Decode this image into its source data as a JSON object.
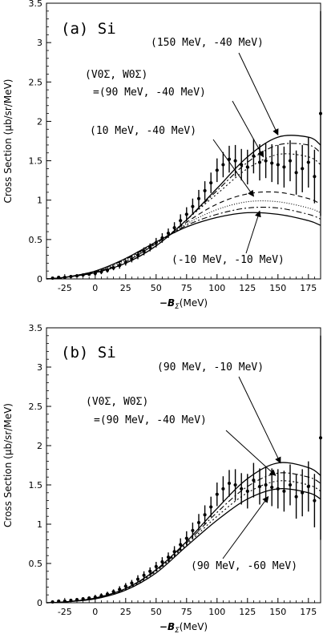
{
  "chart_data": [
    {
      "panel": "(a) Si",
      "type": "line",
      "xlabel_main": "−B",
      "xlabel_sub": "Σ",
      "xlabel_unit": "(MeV)",
      "ylabel": "Cross Section (μb/sr/MeV)",
      "xlim": [
        -40,
        185
      ],
      "ylim": [
        0,
        3.5
      ],
      "xticks": [
        -25,
        0,
        25,
        50,
        75,
        100,
        125,
        150,
        175
      ],
      "yticks": [
        0,
        0.5,
        1,
        1.5,
        2,
        2.5,
        3,
        3.5
      ],
      "annotations": [
        {
          "id": "top",
          "text": "(150 MeV, -40 MeV)",
          "target": [
            150,
            1.83
          ]
        },
        {
          "id": "param1",
          "text": "(V0Σ, W0Σ)",
          "target": null
        },
        {
          "id": "param2",
          "text": "=(90 MeV, -40 MeV)",
          "target": [
            138,
            1.55
          ]
        },
        {
          "id": "mid",
          "text": "(10 MeV, -40 MeV)",
          "target": [
            130,
            1.05
          ]
        },
        {
          "id": "bot",
          "text": "(-10 MeV, -10 MeV)",
          "target": [
            135,
            0.86
          ]
        }
      ],
      "series": [
        {
          "style": "solid",
          "x": [
            -40,
            -25,
            0,
            25,
            50,
            75,
            100,
            125,
            150,
            175,
            185
          ],
          "y": [
            0.0,
            0.02,
            0.08,
            0.2,
            0.42,
            0.75,
            1.15,
            1.55,
            1.8,
            1.8,
            1.7
          ]
        },
        {
          "style": "dashdot",
          "x": [
            -40,
            -25,
            0,
            25,
            50,
            75,
            100,
            125,
            150,
            175,
            185
          ],
          "y": [
            0.0,
            0.02,
            0.08,
            0.2,
            0.42,
            0.75,
            1.12,
            1.48,
            1.7,
            1.7,
            1.6
          ]
        },
        {
          "style": "dotted",
          "x": [
            -40,
            -25,
            0,
            25,
            50,
            75,
            100,
            125,
            150,
            175,
            185
          ],
          "y": [
            0.0,
            0.02,
            0.08,
            0.2,
            0.42,
            0.75,
            1.08,
            1.4,
            1.58,
            1.55,
            1.45
          ]
        },
        {
          "style": "dashed",
          "x": [
            -40,
            -25,
            0,
            25,
            50,
            75,
            100,
            125,
            150,
            175,
            185
          ],
          "y": [
            0.0,
            0.02,
            0.09,
            0.22,
            0.45,
            0.72,
            0.95,
            1.08,
            1.1,
            1.02,
            0.95
          ]
        },
        {
          "style": "dotted2",
          "x": [
            -40,
            -25,
            0,
            25,
            50,
            75,
            100,
            125,
            150,
            175,
            185
          ],
          "y": [
            0.0,
            0.02,
            0.09,
            0.24,
            0.45,
            0.7,
            0.88,
            0.98,
            0.98,
            0.9,
            0.84
          ]
        },
        {
          "style": "dashdot2",
          "x": [
            -40,
            -25,
            0,
            25,
            50,
            75,
            100,
            125,
            150,
            175,
            185
          ],
          "y": [
            0.0,
            0.02,
            0.1,
            0.25,
            0.46,
            0.68,
            0.82,
            0.9,
            0.9,
            0.82,
            0.76
          ]
        },
        {
          "style": "solid2",
          "x": [
            -40,
            -25,
            0,
            25,
            50,
            75,
            100,
            125,
            150,
            175,
            185
          ],
          "y": [
            0.0,
            0.02,
            0.1,
            0.26,
            0.47,
            0.66,
            0.78,
            0.84,
            0.82,
            0.74,
            0.68
          ]
        }
      ],
      "points": [
        {
          "x": -35,
          "y": 0.01,
          "e": 0.02
        },
        {
          "x": -30,
          "y": 0.02,
          "e": 0.02
        },
        {
          "x": -25,
          "y": 0.02,
          "e": 0.02
        },
        {
          "x": -20,
          "y": 0.03,
          "e": 0.02
        },
        {
          "x": -15,
          "y": 0.04,
          "e": 0.02
        },
        {
          "x": -10,
          "y": 0.05,
          "e": 0.02
        },
        {
          "x": -5,
          "y": 0.06,
          "e": 0.02
        },
        {
          "x": 0,
          "y": 0.07,
          "e": 0.03
        },
        {
          "x": 5,
          "y": 0.09,
          "e": 0.03
        },
        {
          "x": 10,
          "y": 0.11,
          "e": 0.03
        },
        {
          "x": 15,
          "y": 0.14,
          "e": 0.03
        },
        {
          "x": 20,
          "y": 0.17,
          "e": 0.04
        },
        {
          "x": 25,
          "y": 0.21,
          "e": 0.04
        },
        {
          "x": 30,
          "y": 0.25,
          "e": 0.04
        },
        {
          "x": 35,
          "y": 0.3,
          "e": 0.05
        },
        {
          "x": 40,
          "y": 0.35,
          "e": 0.05
        },
        {
          "x": 45,
          "y": 0.4,
          "e": 0.05
        },
        {
          "x": 50,
          "y": 0.46,
          "e": 0.06
        },
        {
          "x": 55,
          "y": 0.52,
          "e": 0.06
        },
        {
          "x": 60,
          "y": 0.58,
          "e": 0.06
        },
        {
          "x": 65,
          "y": 0.65,
          "e": 0.07
        },
        {
          "x": 70,
          "y": 0.74,
          "e": 0.08
        },
        {
          "x": 75,
          "y": 0.82,
          "e": 0.09
        },
        {
          "x": 80,
          "y": 0.92,
          "e": 0.1
        },
        {
          "x": 85,
          "y": 1.02,
          "e": 0.11
        },
        {
          "x": 90,
          "y": 1.12,
          "e": 0.12
        },
        {
          "x": 95,
          "y": 1.22,
          "e": 0.13
        },
        {
          "x": 100,
          "y": 1.38,
          "e": 0.15
        },
        {
          "x": 105,
          "y": 1.45,
          "e": 0.16
        },
        {
          "x": 110,
          "y": 1.52,
          "e": 0.17
        },
        {
          "x": 115,
          "y": 1.5,
          "e": 0.2
        },
        {
          "x": 120,
          "y": 1.45,
          "e": 0.2
        },
        {
          "x": 125,
          "y": 1.42,
          "e": 0.22
        },
        {
          "x": 130,
          "y": 1.56,
          "e": 0.22
        },
        {
          "x": 135,
          "y": 1.48,
          "e": 0.23
        },
        {
          "x": 140,
          "y": 1.5,
          "e": 0.22
        },
        {
          "x": 145,
          "y": 1.47,
          "e": 0.24
        },
        {
          "x": 150,
          "y": 1.45,
          "e": 0.25
        },
        {
          "x": 155,
          "y": 1.42,
          "e": 0.26
        },
        {
          "x": 160,
          "y": 1.5,
          "e": 0.26
        },
        {
          "x": 165,
          "y": 1.35,
          "e": 0.28
        },
        {
          "x": 170,
          "y": 1.4,
          "e": 0.3
        },
        {
          "x": 175,
          "y": 1.48,
          "e": 0.32
        },
        {
          "x": 180,
          "y": 1.3,
          "e": 0.34
        },
        {
          "x": 185,
          "y": 2.1,
          "e": 1.3
        }
      ]
    },
    {
      "panel": "(b) Si",
      "type": "line",
      "xlabel_main": "−B",
      "xlabel_sub": "Σ",
      "xlabel_unit": "(MeV)",
      "ylabel": "Cross Section (μb/sr/MeV)",
      "xlim": [
        -40,
        185
      ],
      "ylim": [
        0,
        3.5
      ],
      "xticks": [
        -25,
        0,
        25,
        50,
        75,
        100,
        125,
        150,
        175
      ],
      "yticks": [
        0,
        0.5,
        1,
        1.5,
        2,
        2.5,
        3,
        3.5
      ],
      "annotations": [
        {
          "id": "top",
          "text": "(90 MeV, -10 MeV)",
          "target": [
            152,
            1.78
          ]
        },
        {
          "id": "param1",
          "text": "(V0Σ, W0Σ)",
          "target": null
        },
        {
          "id": "param2",
          "text": "=(90 MeV, -40 MeV)",
          "target": [
            148,
            1.62
          ]
        },
        {
          "id": "bot",
          "text": "(90 MeV, -60 MeV)",
          "target": [
            142,
            1.35
          ]
        }
      ],
      "series": [
        {
          "style": "solid",
          "x": [
            -40,
            -25,
            0,
            25,
            50,
            75,
            100,
            125,
            150,
            175,
            185
          ],
          "y": [
            0.0,
            0.01,
            0.06,
            0.18,
            0.42,
            0.78,
            1.2,
            1.58,
            1.78,
            1.72,
            1.62
          ]
        },
        {
          "style": "dashdot",
          "x": [
            -40,
            -25,
            0,
            25,
            50,
            75,
            100,
            125,
            150,
            175,
            185
          ],
          "y": [
            0.0,
            0.01,
            0.06,
            0.18,
            0.41,
            0.76,
            1.15,
            1.48,
            1.65,
            1.6,
            1.52
          ]
        },
        {
          "style": "dotted",
          "x": [
            -40,
            -25,
            0,
            25,
            50,
            75,
            100,
            125,
            150,
            175,
            185
          ],
          "y": [
            0.0,
            0.01,
            0.06,
            0.17,
            0.4,
            0.74,
            1.1,
            1.4,
            1.55,
            1.5,
            1.42
          ]
        },
        {
          "style": "solid2",
          "x": [
            -40,
            -25,
            0,
            25,
            50,
            75,
            100,
            125,
            150,
            175,
            185
          ],
          "y": [
            0.0,
            0.01,
            0.05,
            0.16,
            0.38,
            0.72,
            1.05,
            1.32,
            1.45,
            1.4,
            1.32
          ]
        }
      ],
      "points": [
        {
          "x": -35,
          "y": 0.01,
          "e": 0.02
        },
        {
          "x": -30,
          "y": 0.02,
          "e": 0.02
        },
        {
          "x": -25,
          "y": 0.02,
          "e": 0.02
        },
        {
          "x": -20,
          "y": 0.03,
          "e": 0.02
        },
        {
          "x": -15,
          "y": 0.04,
          "e": 0.02
        },
        {
          "x": -10,
          "y": 0.05,
          "e": 0.02
        },
        {
          "x": -5,
          "y": 0.06,
          "e": 0.02
        },
        {
          "x": 0,
          "y": 0.07,
          "e": 0.03
        },
        {
          "x": 5,
          "y": 0.09,
          "e": 0.03
        },
        {
          "x": 10,
          "y": 0.11,
          "e": 0.03
        },
        {
          "x": 15,
          "y": 0.14,
          "e": 0.03
        },
        {
          "x": 20,
          "y": 0.17,
          "e": 0.04
        },
        {
          "x": 25,
          "y": 0.21,
          "e": 0.04
        },
        {
          "x": 30,
          "y": 0.25,
          "e": 0.04
        },
        {
          "x": 35,
          "y": 0.3,
          "e": 0.05
        },
        {
          "x": 40,
          "y": 0.35,
          "e": 0.05
        },
        {
          "x": 45,
          "y": 0.4,
          "e": 0.05
        },
        {
          "x": 50,
          "y": 0.46,
          "e": 0.06
        },
        {
          "x": 55,
          "y": 0.52,
          "e": 0.06
        },
        {
          "x": 60,
          "y": 0.58,
          "e": 0.06
        },
        {
          "x": 65,
          "y": 0.65,
          "e": 0.07
        },
        {
          "x": 70,
          "y": 0.74,
          "e": 0.08
        },
        {
          "x": 75,
          "y": 0.82,
          "e": 0.09
        },
        {
          "x": 80,
          "y": 0.92,
          "e": 0.1
        },
        {
          "x": 85,
          "y": 1.02,
          "e": 0.11
        },
        {
          "x": 90,
          "y": 1.12,
          "e": 0.12
        },
        {
          "x": 95,
          "y": 1.22,
          "e": 0.13
        },
        {
          "x": 100,
          "y": 1.38,
          "e": 0.15
        },
        {
          "x": 105,
          "y": 1.45,
          "e": 0.16
        },
        {
          "x": 110,
          "y": 1.52,
          "e": 0.17
        },
        {
          "x": 115,
          "y": 1.5,
          "e": 0.2
        },
        {
          "x": 120,
          "y": 1.45,
          "e": 0.2
        },
        {
          "x": 125,
          "y": 1.42,
          "e": 0.22
        },
        {
          "x": 130,
          "y": 1.56,
          "e": 0.22
        },
        {
          "x": 135,
          "y": 1.48,
          "e": 0.23
        },
        {
          "x": 140,
          "y": 1.5,
          "e": 0.22
        },
        {
          "x": 145,
          "y": 1.47,
          "e": 0.24
        },
        {
          "x": 150,
          "y": 1.45,
          "e": 0.25
        },
        {
          "x": 155,
          "y": 1.42,
          "e": 0.26
        },
        {
          "x": 160,
          "y": 1.5,
          "e": 0.26
        },
        {
          "x": 165,
          "y": 1.35,
          "e": 0.28
        },
        {
          "x": 170,
          "y": 1.4,
          "e": 0.3
        },
        {
          "x": 175,
          "y": 1.48,
          "e": 0.32
        },
        {
          "x": 180,
          "y": 1.3,
          "e": 0.34
        },
        {
          "x": 185,
          "y": 2.1,
          "e": 1.3
        }
      ]
    }
  ]
}
